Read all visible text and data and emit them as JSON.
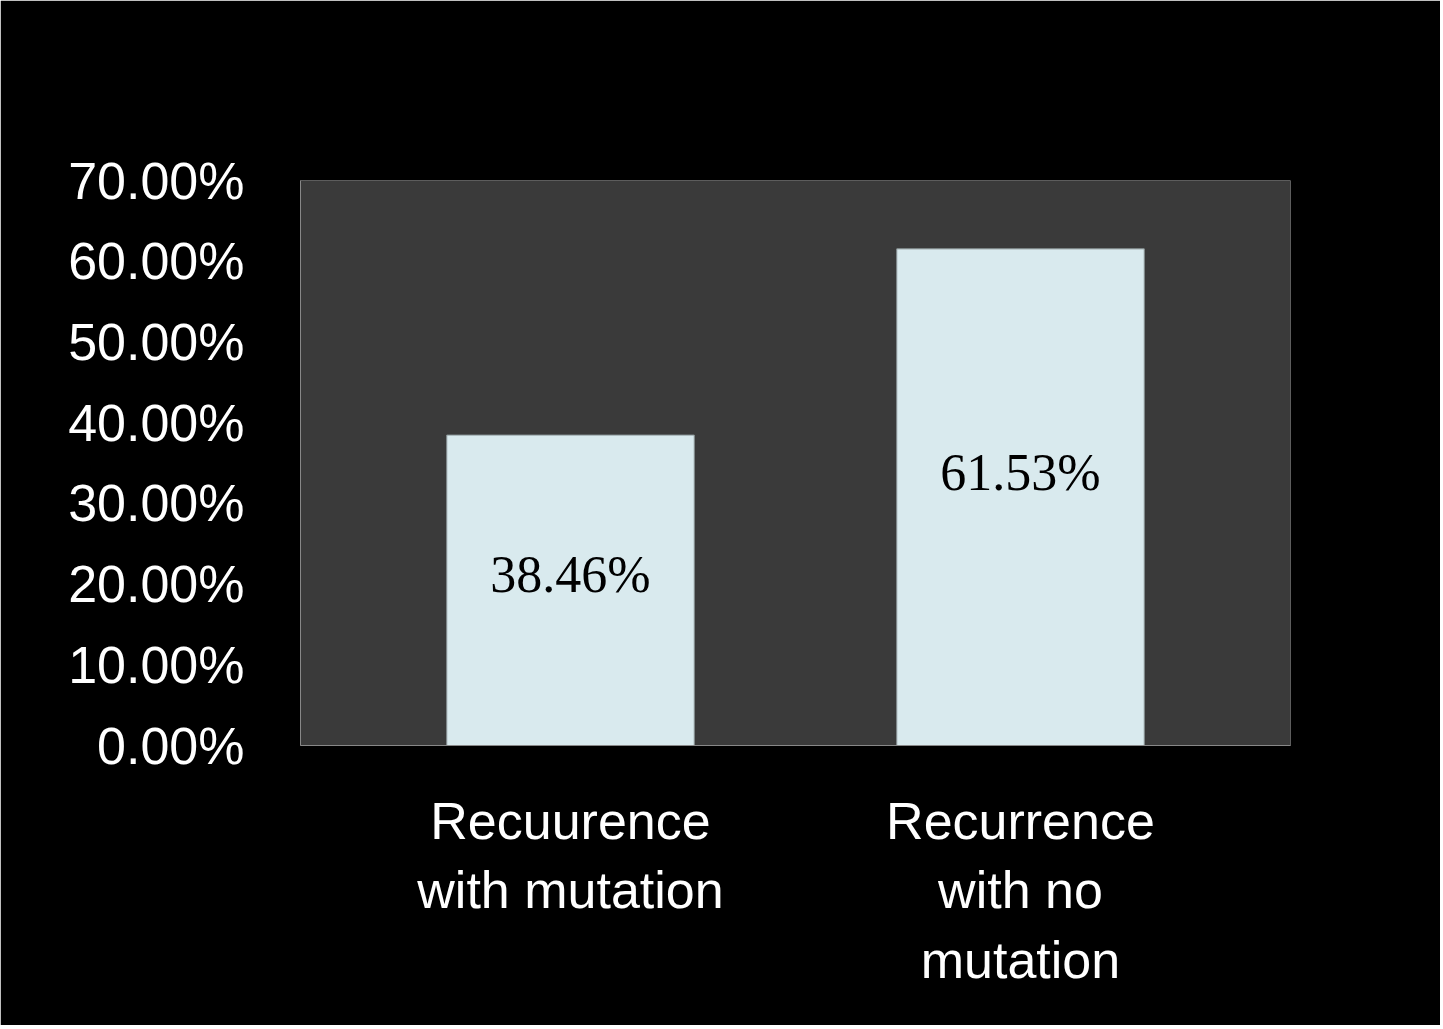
{
  "chart_data": {
    "type": "bar",
    "categories": [
      "Recuurence\nwith mutation",
      "Recurrence\nwith no\nmutation"
    ],
    "values": [
      38.46,
      61.53
    ],
    "colors": [
      "#d9eaee",
      "#d9eaee"
    ],
    "value_labels": [
      "38.46%",
      "61.53%"
    ],
    "ylim": [
      0,
      70
    ],
    "yticks": [
      {
        "value": 0,
        "label": "0.00%"
      },
      {
        "value": 10,
        "label": "10.00%"
      },
      {
        "value": 20,
        "label": "20.00%"
      },
      {
        "value": 30,
        "label": "30.00%"
      },
      {
        "value": 40,
        "label": "40.00%"
      },
      {
        "value": 50,
        "label": "50.00%"
      },
      {
        "value": 60,
        "label": "60.00%"
      },
      {
        "value": 70,
        "label": "70.00%"
      }
    ],
    "grid": false
  }
}
